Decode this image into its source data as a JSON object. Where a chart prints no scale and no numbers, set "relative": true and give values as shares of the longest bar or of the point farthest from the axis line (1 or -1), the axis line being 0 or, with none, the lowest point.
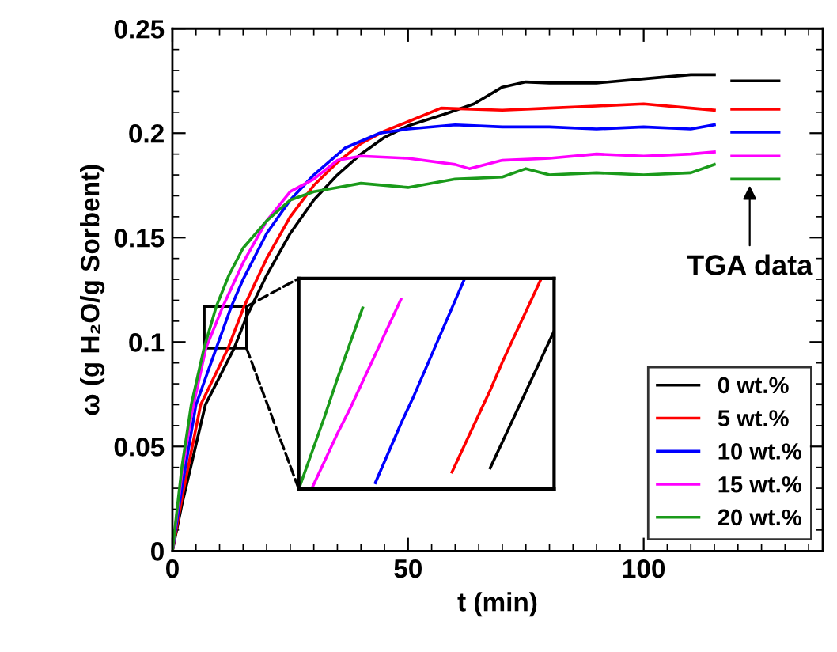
{
  "chart_data": [
    {
      "type": "line",
      "xlabel": "t (min)",
      "ylabel": "ω (g H₂O/g Sorbent)",
      "xlim": [
        0,
        138
      ],
      "xticks": [
        0,
        50,
        100
      ],
      "ylim": [
        0,
        0.25
      ],
      "yticks": [
        0,
        0.05,
        0.1,
        0.15,
        0.2,
        0.25
      ],
      "grid": false,
      "legend": "bottom right",
      "line_style": "solid",
      "marker": "none",
      "annotations": [
        {
          "text": "TGA data",
          "x": 122.5,
          "y": 0.177
        }
      ],
      "series": [
        {
          "name": "0 wt.%",
          "color": "#000000",
          "x": [
            0,
            2,
            7,
            13.1,
            15.7,
            20,
            25,
            30,
            35,
            40,
            45,
            50,
            57.6,
            64,
            70,
            75,
            80,
            90,
            100,
            110,
            115
          ],
          "values": [
            0,
            0.022,
            0.07,
            0.097,
            0.112,
            0.132,
            0.152,
            0.168,
            0.18,
            0.19,
            0.198,
            0.2035,
            0.209,
            0.214,
            0.222,
            0.2245,
            0.224,
            0.224,
            0.226,
            0.228,
            0.228
          ]
        },
        {
          "name": "5 wt.%",
          "color": "#ff0000",
          "x": [
            0,
            2,
            6,
            11.8,
            15.2,
            20,
            25,
            30,
            35,
            40,
            45,
            50,
            57,
            70,
            80,
            90,
            100,
            110,
            115
          ],
          "values": [
            0,
            0.025,
            0.07,
            0.097,
            0.117,
            0.14,
            0.16,
            0.175,
            0.186,
            0.195,
            0.201,
            0.2055,
            0.212,
            0.211,
            0.212,
            0.213,
            0.214,
            0.212,
            0.211
          ]
        },
        {
          "name": "10 wt.%",
          "color": "#0000ff",
          "x": [
            0,
            2,
            5,
            9.3,
            12.5,
            15,
            20,
            25,
            30,
            36.7,
            44,
            50,
            60,
            70,
            80,
            90,
            100,
            110,
            115
          ],
          "values": [
            0,
            0.03,
            0.07,
            0.097,
            0.117,
            0.13,
            0.152,
            0.168,
            0.18,
            0.193,
            0.2,
            0.202,
            0.204,
            0.203,
            0.203,
            0.202,
            0.203,
            0.202,
            0.204
          ]
        },
        {
          "name": "15 wt.%",
          "color": "#ff00ff",
          "x": [
            0,
            2,
            4,
            7.1,
            10.7,
            15,
            20,
            25,
            30,
            35,
            40,
            50,
            60,
            63,
            70,
            80,
            90,
            100,
            110,
            115
          ],
          "values": [
            0,
            0.037,
            0.065,
            0.097,
            0.117,
            0.138,
            0.158,
            0.172,
            0.178,
            0.187,
            0.189,
            0.188,
            0.185,
            0.183,
            0.187,
            0.188,
            0.19,
            0.189,
            0.19,
            0.191
          ]
        },
        {
          "name": "20 wt.%",
          "color": "#1a9a1a",
          "x": [
            0,
            2,
            4,
            6.7,
            9.3,
            12,
            15,
            20,
            25,
            30,
            35,
            40,
            50,
            60,
            70,
            75,
            80,
            90,
            100,
            110,
            115
          ],
          "values": [
            0,
            0.04,
            0.07,
            0.097,
            0.117,
            0.132,
            0.145,
            0.158,
            0.168,
            0.172,
            0.174,
            0.176,
            0.174,
            0.178,
            0.179,
            0.183,
            0.18,
            0.181,
            0.18,
            0.181,
            0.185
          ]
        },
        {
          "color": "#000000",
          "x": [
            118.7,
            128.7
          ],
          "values": [
            0.225,
            0.225
          ]
        },
        {
          "color": "#ff0000",
          "x": [
            118.7,
            128.7
          ],
          "values": [
            0.2115,
            0.2115
          ]
        },
        {
          "color": "#0000ff",
          "x": [
            118.7,
            128.7
          ],
          "values": [
            0.2005,
            0.2005
          ]
        },
        {
          "color": "#ff00ff",
          "x": [
            118.7,
            128.7
          ],
          "values": [
            0.189,
            0.189
          ]
        },
        {
          "color": "#1a9a1a",
          "x": [
            118.7,
            128.7
          ],
          "values": [
            0.178,
            0.178
          ]
        }
      ]
    },
    {
      "type": "line",
      "relative": true,
      "tick_labels": false,
      "line_style": "solid",
      "marker": "none",
      "categories": [
        null,
        null,
        null,
        null,
        null,
        null,
        null,
        null,
        null,
        null,
        null,
        null,
        null,
        null,
        null,
        null,
        null,
        null,
        null,
        null,
        null
      ],
      "series": [
        {
          "color": "#000000",
          "values": [
            null,
            null,
            null,
            null,
            null,
            null,
            null,
            null,
            null,
            null,
            null,
            null,
            null,
            null,
            null,
            0.1,
            0.23,
            0.36,
            0.49,
            0.62,
            0.75
          ]
        },
        {
          "color": "#ff0000",
          "values": [
            null,
            null,
            null,
            null,
            null,
            null,
            null,
            null,
            null,
            null,
            null,
            null,
            0.08,
            0.21,
            0.34,
            0.47,
            0.61,
            0.74,
            0.87,
            1.0,
            null
          ]
        },
        {
          "color": "#0000ff",
          "values": [
            null,
            null,
            null,
            null,
            null,
            null,
            0.03,
            0.17,
            0.31,
            0.44,
            0.58,
            0.72,
            0.86,
            1.0,
            null,
            null,
            null,
            null,
            null,
            null,
            null
          ]
        },
        {
          "color": "#ff00ff",
          "values": [
            null,
            0,
            0.13,
            0.26,
            0.38,
            0.51,
            0.64,
            0.77,
            0.9,
            null,
            null,
            null,
            null,
            null,
            null,
            null,
            null,
            null,
            null,
            null,
            null
          ]
        },
        {
          "color": "#1a9a1a",
          "values": [
            0,
            0.17,
            0.34,
            0.52,
            0.69,
            0.86,
            null,
            null,
            null,
            null,
            null,
            null,
            null,
            null,
            null,
            null,
            null,
            null,
            null,
            null,
            null
          ]
        }
      ]
    }
  ]
}
